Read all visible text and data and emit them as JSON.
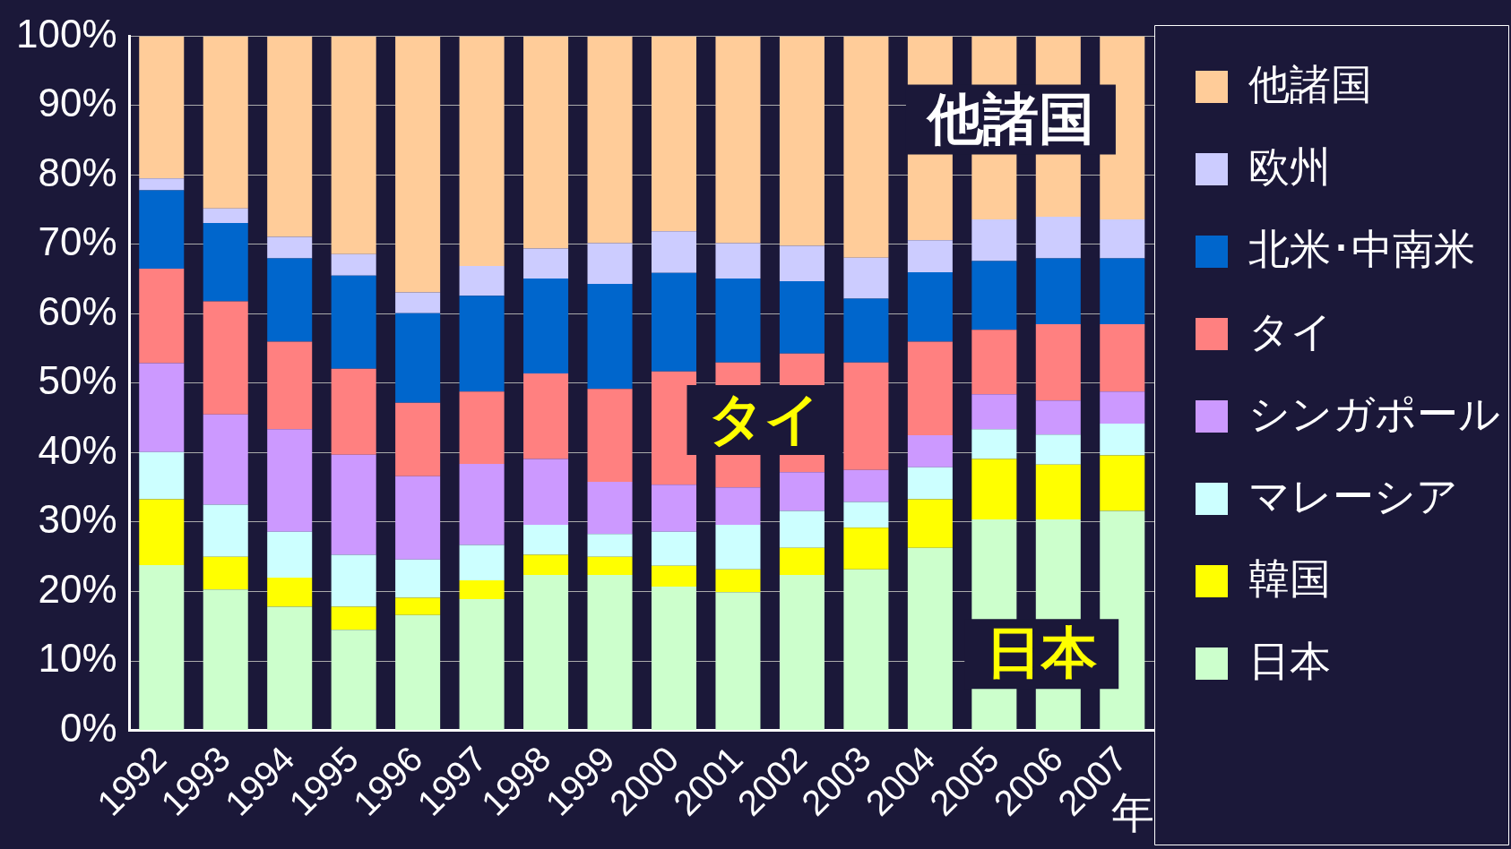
{
  "chart_data": {
    "type": "bar",
    "stacked": true,
    "xlabel": "年",
    "categories": [
      "1992",
      "1993",
      "1994",
      "1995",
      "1996",
      "1997",
      "1998",
      "1999",
      "2000",
      "2001",
      "2002",
      "2003",
      "2004",
      "2005",
      "2006",
      "2007"
    ],
    "series": [
      {
        "name": "日本",
        "color": "#ccffcc",
        "values": [
          23.8,
          20.3,
          17.8,
          14.5,
          16.6,
          18.9,
          22.4,
          22.4,
          20.7,
          19.9,
          22.4,
          23.2,
          26.3,
          30.4,
          30.4,
          31.6
        ]
      },
      {
        "name": "韓国",
        "color": "#ffff00",
        "values": [
          9.5,
          4.7,
          4.2,
          3.3,
          2.5,
          2.7,
          2.9,
          2.6,
          3.0,
          3.3,
          3.9,
          6.0,
          7.0,
          8.7,
          7.9,
          8.0
        ]
      },
      {
        "name": "マレーシア",
        "color": "#ccffff",
        "values": [
          6.8,
          7.5,
          6.6,
          7.5,
          5.5,
          5.1,
          4.3,
          3.3,
          4.9,
          6.4,
          5.3,
          3.7,
          4.6,
          4.3,
          4.3,
          4.6
        ]
      },
      {
        "name": "シンガポール",
        "color": "#cc99ff",
        "values": [
          12.8,
          13.0,
          14.8,
          14.4,
          12.0,
          11.7,
          9.5,
          7.5,
          6.8,
          5.4,
          5.6,
          4.6,
          4.6,
          5.0,
          4.9,
          4.6
        ]
      },
      {
        "name": "タイ",
        "color": "#ff8080",
        "values": [
          13.6,
          16.3,
          12.6,
          12.4,
          10.6,
          10.4,
          12.3,
          13.4,
          16.3,
          18.0,
          17.1,
          15.5,
          13.5,
          9.3,
          11.0,
          9.7
        ]
      },
      {
        "name": "北米･中南米",
        "color": "#0066cc",
        "values": [
          11.3,
          11.3,
          12.0,
          13.4,
          12.9,
          13.8,
          13.7,
          15.1,
          14.2,
          12.1,
          10.4,
          9.2,
          10.0,
          9.9,
          9.5,
          9.5
        ]
      },
      {
        "name": "欧州",
        "color": "#ccccff",
        "values": [
          1.7,
          2.1,
          3.1,
          3.1,
          3.0,
          4.3,
          4.3,
          5.9,
          6.0,
          5.1,
          5.1,
          5.9,
          4.6,
          6.0,
          6.0,
          5.6
        ]
      },
      {
        "name": "他諸国",
        "color": "#ffcc99",
        "values": [
          20.5,
          24.8,
          28.9,
          31.4,
          36.9,
          33.1,
          30.6,
          29.8,
          28.1,
          29.8,
          30.2,
          31.9,
          29.4,
          26.4,
          26.0,
          26.4
        ]
      }
    ],
    "ylim": [
      0,
      100
    ],
    "yticks": [
      {
        "value": 0,
        "label": "0%"
      },
      {
        "value": 10,
        "label": "10%"
      },
      {
        "value": 20,
        "label": "20%"
      },
      {
        "value": 30,
        "label": "30%"
      },
      {
        "value": 40,
        "label": "40%"
      },
      {
        "value": 50,
        "label": "50%"
      },
      {
        "value": 60,
        "label": "60%"
      },
      {
        "value": 70,
        "label": "70%"
      },
      {
        "value": 80,
        "label": "80%"
      },
      {
        "value": 90,
        "label": "90%"
      },
      {
        "value": 100,
        "label": "100%"
      }
    ],
    "grid": "y",
    "legend": "right",
    "annotations": [
      "他諸国",
      "タイ",
      "日本"
    ]
  }
}
